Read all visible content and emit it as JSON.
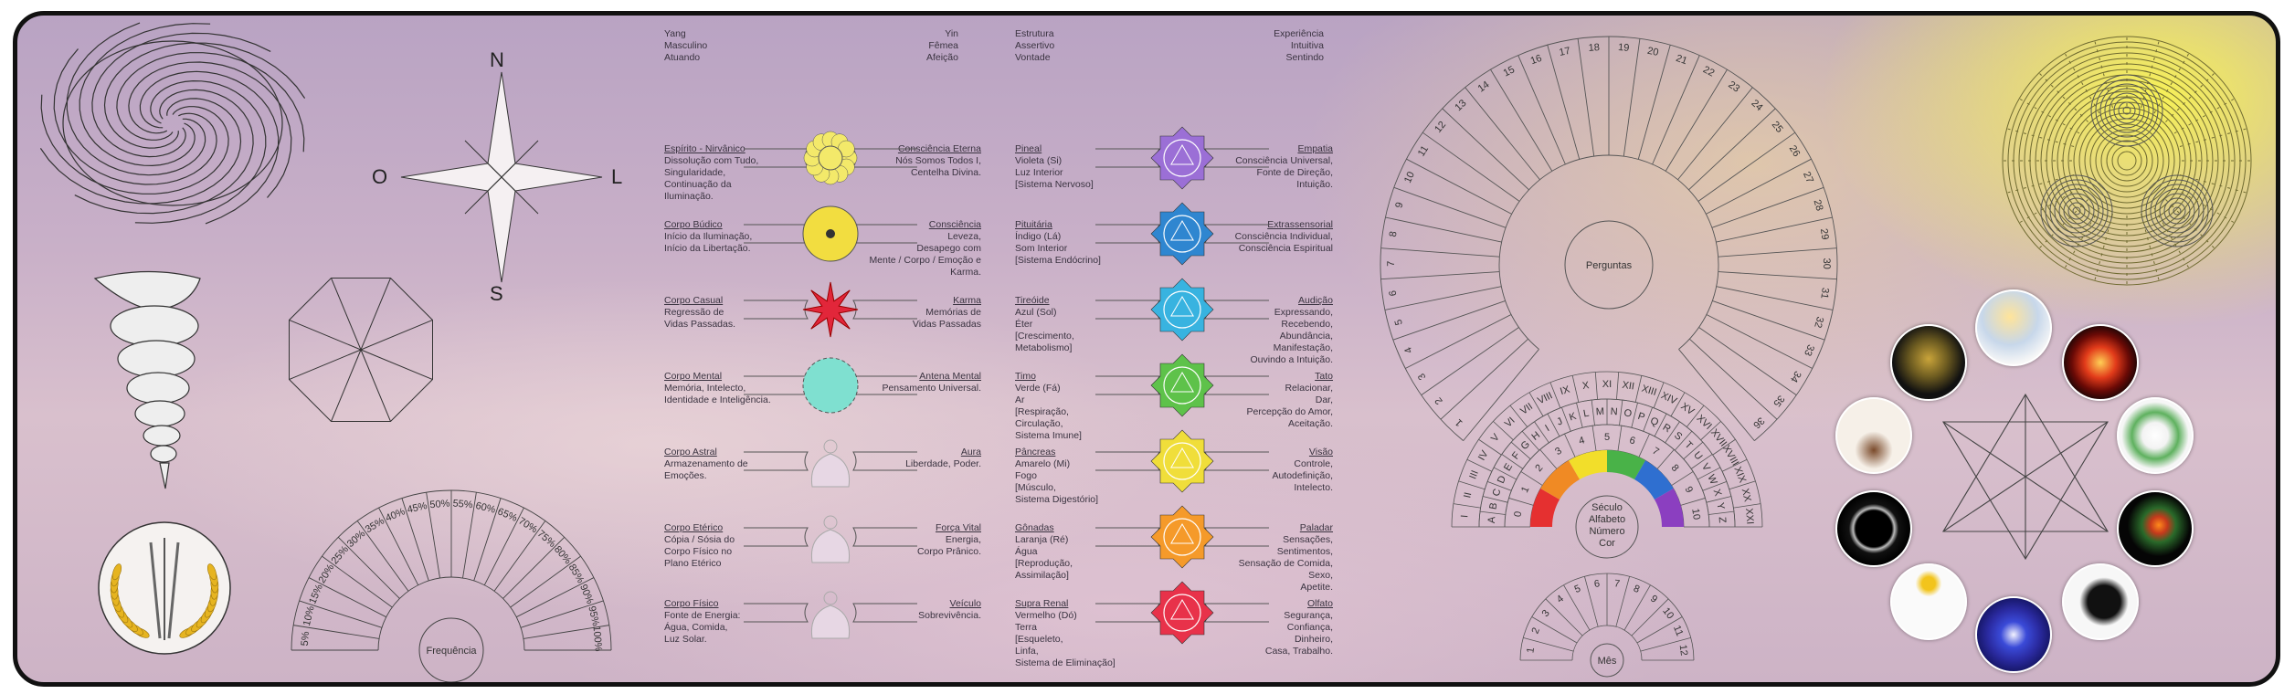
{
  "compass": {
    "n": "N",
    "s": "S",
    "o": "O",
    "l": "L"
  },
  "dials": {
    "frequencia": {
      "label": "Frequência",
      "ticks": [
        "5%",
        "10%",
        "15%",
        "20%",
        "25%",
        "30%",
        "35%",
        "40%",
        "45%",
        "50%",
        "55%",
        "60%",
        "65%",
        "70%",
        "75%",
        "80%",
        "85%",
        "90%",
        "95%",
        "100%"
      ]
    },
    "perguntas": {
      "label": "Perguntas",
      "ticks": [
        "1",
        "2",
        "3",
        "4",
        "5",
        "6",
        "7",
        "8",
        "9",
        "10",
        "11",
        "12",
        "13",
        "14",
        "15",
        "16",
        "17",
        "18",
        "19",
        "20",
        "21",
        "22",
        "23",
        "24",
        "25",
        "26",
        "27",
        "28",
        "29",
        "30",
        "31",
        "32",
        "33",
        "34",
        "35",
        "36"
      ]
    },
    "seculo": {
      "label": "Século\nAlfabeto\nNúmero\nCor",
      "roman": [
        "I",
        "II",
        "III",
        "IV",
        "V",
        "VI",
        "VII",
        "VIII",
        "IX",
        "X",
        "XI",
        "XII",
        "XIII",
        "XIV",
        "XV",
        "XVI",
        "XVII",
        "XVIII",
        "XIX",
        "XX",
        "XXI"
      ],
      "alphabet": [
        "A",
        "B",
        "C",
        "D",
        "E",
        "F",
        "G",
        "H",
        "I",
        "J",
        "K",
        "L",
        "M",
        "N",
        "O",
        "P",
        "Q",
        "R",
        "S",
        "T",
        "U",
        "V",
        "W",
        "X",
        "Y",
        "Z"
      ],
      "numbers": [
        "0",
        "1",
        "2",
        "3",
        "4",
        "5",
        "6",
        "7",
        "8",
        "9",
        "10"
      ]
    },
    "mes": {
      "label": "Mês",
      "ticks": [
        "1",
        "2",
        "3",
        "4",
        "5",
        "6",
        "7",
        "8",
        "9",
        "10",
        "11",
        "12"
      ]
    }
  },
  "columns": {
    "left_head": {
      "left": "Yang\nMasculino\nAtuando",
      "right": "Yin\nFêmea\nAfeição"
    },
    "right_head": {
      "left": "Estrutura\nAssertivo\nVontade",
      "right": "Experiência\nIntuitiva\nSentindo"
    }
  },
  "bodies": [
    {
      "lt": "Espírito - Nirvânico",
      "lb": "Dissolução com Tudo,\nSingularidade,\nContinuação da Iluminação.",
      "rt": "Consciência Eterna",
      "rb": "Nós Somos Todos I,\nCentelha Divina."
    },
    {
      "lt": "Corpo Búdico",
      "lb": "Início da  Iluminação,\nInício da Libertação.",
      "rt": "Consciência",
      "rb": "Leveza,\nDesapego com\nMente / Corpo / Emoção e\nKarma."
    },
    {
      "lt": "Corpo Casual",
      "lb": "Regressão de\nVidas Passadas.",
      "rt": "Karma",
      "rb": "Memórias de\nVidas Passadas"
    },
    {
      "lt": "Corpo Mental",
      "lb": "Memória, Intelecto,\nIdentidade e Inteligência.",
      "rt": "Antena Mental",
      "rb": "Pensamento Universal."
    },
    {
      "lt": "Corpo Astral",
      "lb": "Armazenamento de\nEmoções.",
      "rt": "Aura",
      "rb": "Liberdade, Poder."
    },
    {
      "lt": "Corpo Etérico",
      "lb": "Cópia / Sósia do\nCorpo Físico no\nPlano Etérico",
      "rt": "Força Vital",
      "rb": "Energia,\nCorpo Prânico."
    },
    {
      "lt": "Corpo Físico",
      "lb": "Fonte de Energia:\nÁgua, Comida,\nLuz Solar.",
      "rt": "Veículo",
      "rb": "Sobrevivência."
    }
  ],
  "chakras": [
    {
      "lt": "Pineal",
      "lb": "Violeta (Si)\nLuz Interior\n[Sistema Nervoso]",
      "rt": "Empatia",
      "rb": "Consciência Universal,\nFonte de Direção,\nIntuição.",
      "color": "#9b6fd6"
    },
    {
      "lt": "Pituitária",
      "lb": "Índigo (Lá)\nSom Interior\n[Sistema Endócrino]",
      "rt": "Extrassensorial",
      "rb": "Consciência Individual,\nConsciência Espiritual",
      "color": "#2f86d0"
    },
    {
      "lt": "Tireóide",
      "lb": "Azul (Sol)\nÉter\n[Crescimento,\nMetabolismo]",
      "rt": "Audição",
      "rb": "Expressando,\nRecebendo,\nAbundância,\nManifestação,\nOuvindo a Intuição.",
      "color": "#38b3e0"
    },
    {
      "lt": "Timo",
      "lb": "Verde (Fá)\nAr\n[Respiração,\nCirculação,\nSistema Imune]",
      "rt": "Tato",
      "rb": "Relacionar,\nDar,\nPercepção do Amor,\nAceitação.",
      "color": "#5ec24a"
    },
    {
      "lt": "Pâncreas",
      "lb": "Amarelo (Mi)\nFogo\n[Músculo,\nSistema Digestório]",
      "rt": "Visão",
      "rb": "Controle,\nAutodefinição,\nIntelecto.",
      "color": "#f0de3a"
    },
    {
      "lt": "Gônadas",
      "lb": "Laranja (Ré)\nÁgua\n[Reprodução,\nAssimilação]",
      "rt": "Paladar",
      "rb": "Sensações,\nSentimentos,\nSensação de Comida,\nSexo,\nApetite.",
      "color": "#f59a2a"
    },
    {
      "lt": "Supra Renal",
      "lb": "Vermelho (Dó)\nTerra\n[Esqueleto,\nLinfa,\nSistema de Eliminação]",
      "rt": "Olfato",
      "rb": "Segurança,\nConfiança,\nDinheiro,\nCasa, Trabalho.",
      "color": "#e8324a"
    }
  ],
  "rainbow": [
    "#e53030",
    "#f08a24",
    "#f2de2a",
    "#49b248",
    "#2f6fd0",
    "#8b3fc0"
  ]
}
